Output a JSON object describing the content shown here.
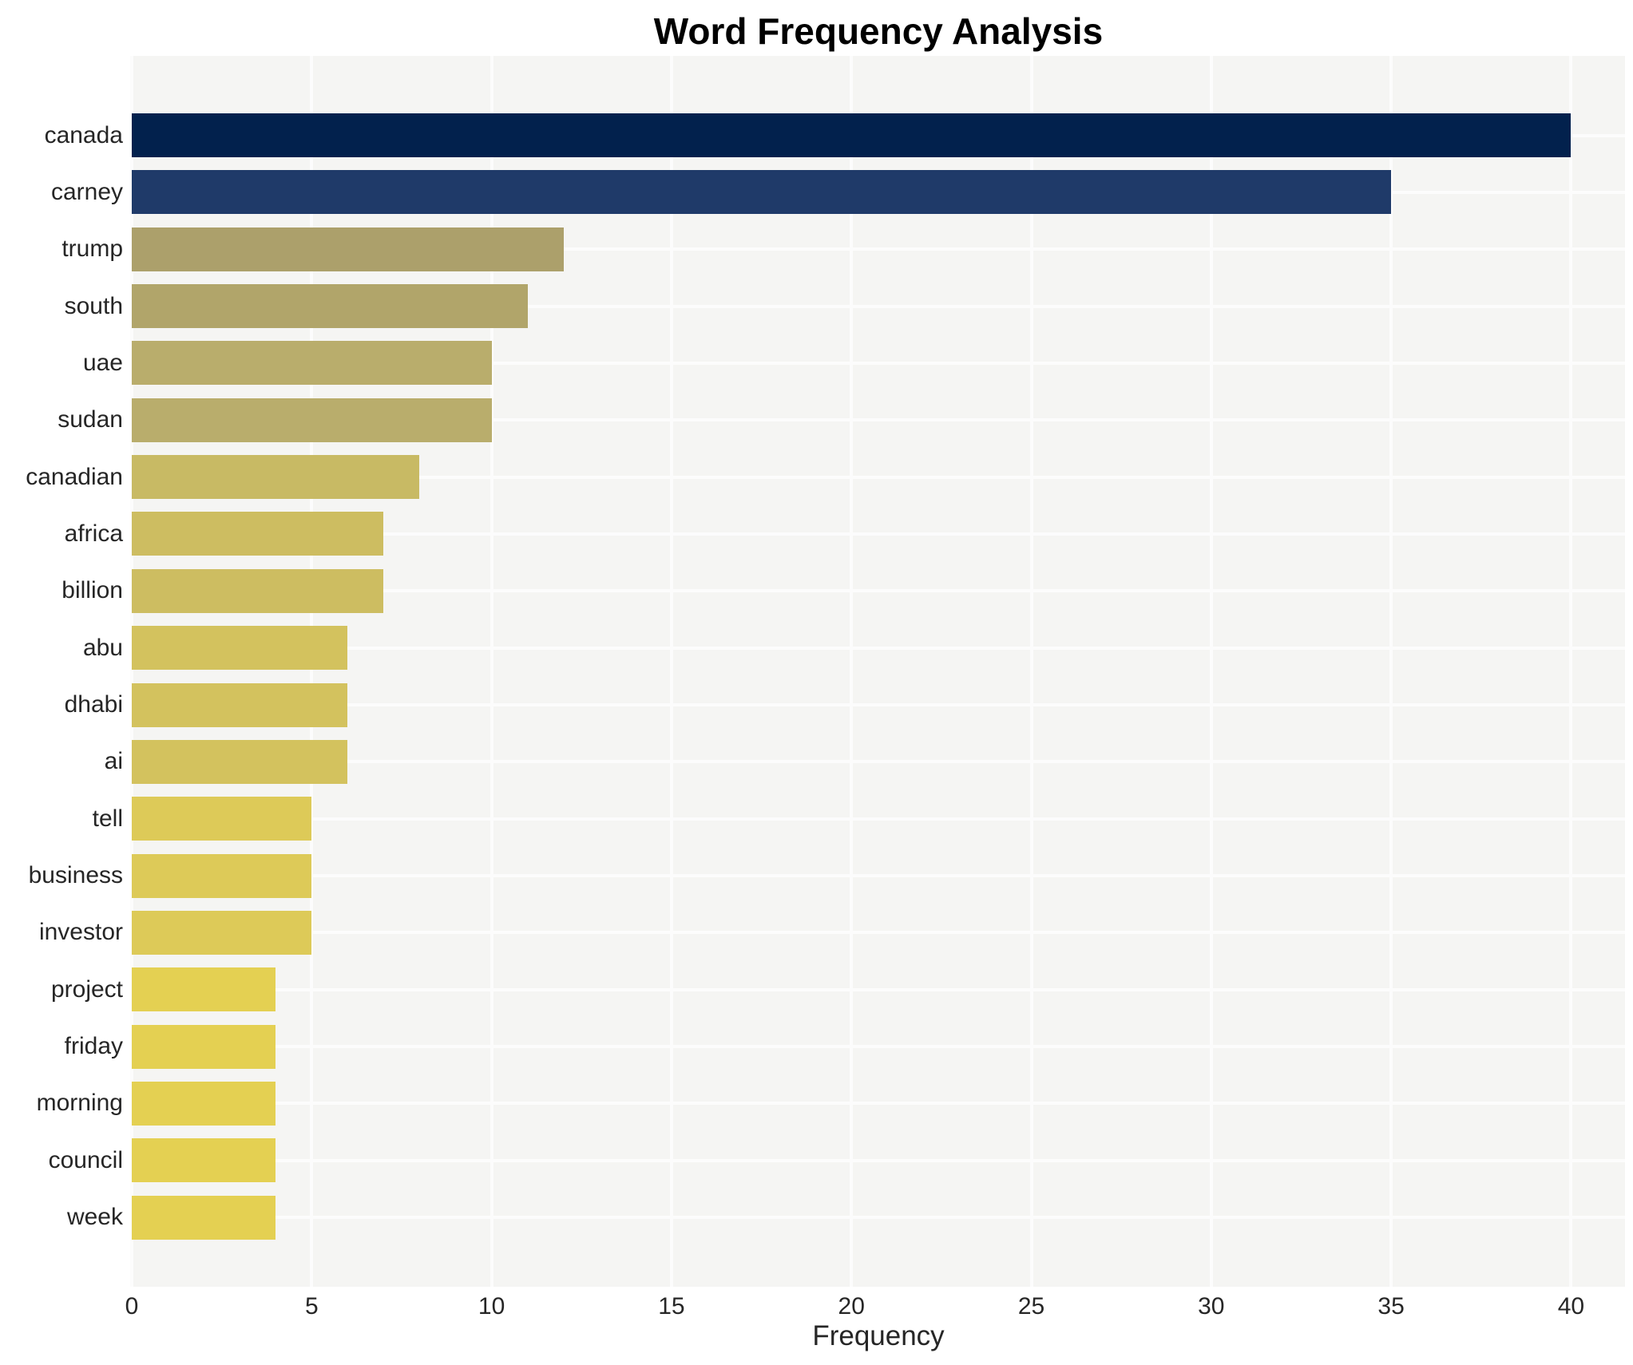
{
  "chart_data": {
    "type": "bar",
    "orientation": "horizontal",
    "title": "Word Frequency Analysis",
    "xlabel": "Frequency",
    "ylabel": "",
    "categories": [
      "canada",
      "carney",
      "trump",
      "south",
      "uae",
      "sudan",
      "canadian",
      "africa",
      "billion",
      "abu",
      "dhabi",
      "ai",
      "tell",
      "business",
      "investor",
      "project",
      "friday",
      "morning",
      "council",
      "week"
    ],
    "values": [
      40,
      35,
      12,
      11,
      10,
      10,
      8,
      7,
      7,
      6,
      6,
      6,
      5,
      5,
      5,
      4,
      4,
      4,
      4,
      4
    ],
    "bar_colors": [
      "#02214d",
      "#1f3a69",
      "#aca06b",
      "#b1a56a",
      "#b9ad6c",
      "#b9ad6c",
      "#c8ba64",
      "#cdbd61",
      "#cdbd61",
      "#d3c25e",
      "#d3c25e",
      "#d3c25e",
      "#ddca58",
      "#ddca58",
      "#ddca58",
      "#e4d052",
      "#e4d052",
      "#e4d052",
      "#e4d052",
      "#e4d052"
    ],
    "xticks": [
      0,
      5,
      10,
      15,
      20,
      25,
      30,
      35,
      40
    ],
    "xlim": [
      0,
      41.5
    ],
    "grid": true,
    "legend": "none",
    "colors": {
      "plot_background": "#f5f5f3",
      "gridline": "#fcfcfc",
      "tick_label": "#262626",
      "title": "#000000"
    }
  }
}
